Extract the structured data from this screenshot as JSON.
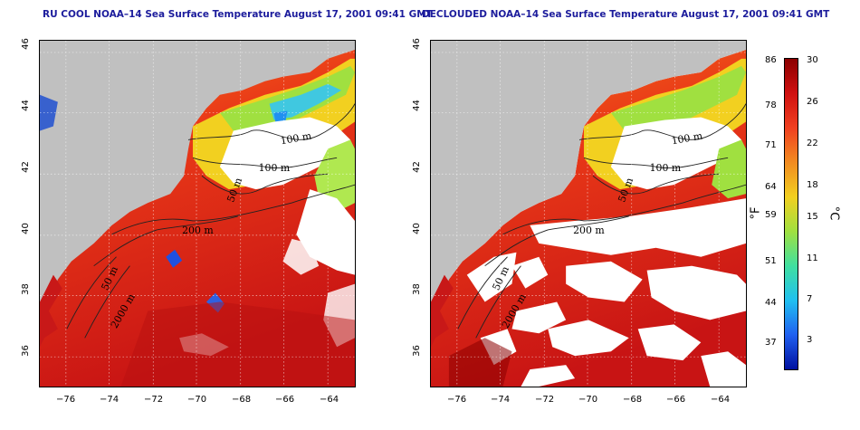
{
  "left_panel": {
    "title": "RU COOL NOAA–14 Sea Surface Temperature August 17, 2001 09:41 GMT"
  },
  "right_panel": {
    "title": "DECLOUDED NOAA–14 Sea Surface Temperature August 17, 2001 09:41 GMT"
  },
  "axes": {
    "lat_ticks": [
      "46",
      "44",
      "42",
      "40",
      "38",
      "36"
    ],
    "lon_ticks": [
      "−76",
      "−74",
      "−72",
      "−70",
      "−68",
      "−66",
      "−64"
    ]
  },
  "contours": {
    "label_100a": "100 m",
    "label_100b": "100 m",
    "label_50": "50 m",
    "label_200": "200 m",
    "label_50b": "50 m",
    "label_2000": "2000 m"
  },
  "colorbar": {
    "fahrenheit_ticks": [
      "86",
      "78",
      "71",
      "64",
      "59",
      "51",
      "44",
      "37"
    ],
    "celsius_ticks": [
      "30",
      "26",
      "22",
      "18",
      "15",
      "11",
      "7",
      "3"
    ],
    "fahrenheit_unit": "°F",
    "celsius_unit": "°C",
    "colors": [
      "#8b0000",
      "#d01010",
      "#f04020",
      "#f28b20",
      "#f2d020",
      "#a0e040",
      "#40e0a0",
      "#20c0f0",
      "#2060f0",
      "#0010a0"
    ]
  },
  "land_color": "#c0c0c0",
  "cloud_color": "#ffffff"
}
